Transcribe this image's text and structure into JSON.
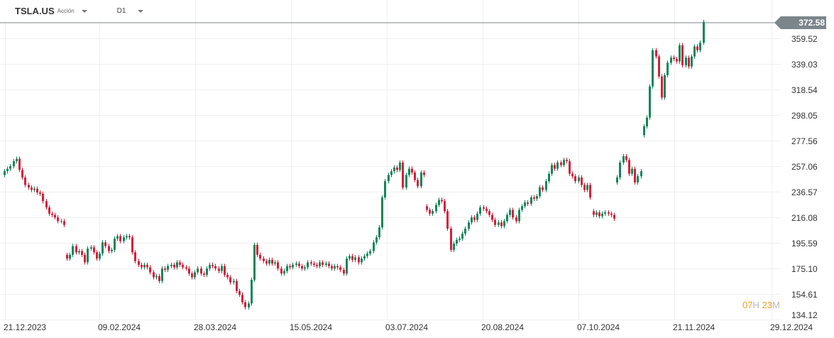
{
  "header": {
    "symbol": "TSLA.US",
    "instrument_type": "Acción",
    "timeframe": "D1"
  },
  "current_price": "372.58",
  "countdown": {
    "hours": "07",
    "hours_unit": "H",
    "minutes": "23",
    "minutes_unit": "M"
  },
  "colors": {
    "up": "#13855a",
    "down": "#d3203b",
    "grid": "#efefef",
    "price_line": "#7b868b"
  },
  "chart_data": {
    "type": "candlestick",
    "title": "TSLA.US D1",
    "y_ticks": [
      "359.52",
      "339.03",
      "318.54",
      "298.05",
      "277.56",
      "257.06",
      "236.57",
      "216.08",
      "195.59",
      "175.10",
      "154.61",
      "134.12"
    ],
    "x_ticks": [
      "21.12.2023",
      "09.02.2024",
      "28.03.2024",
      "15.05.2024",
      "03.07.2024",
      "20.08.2024",
      "07.10.2024",
      "21.11.2024",
      "29.12.2024"
    ],
    "ylim": [
      132,
      376
    ],
    "grid": true,
    "open": [
      250,
      253,
      255,
      257,
      261,
      263,
      254,
      248,
      242,
      240,
      238,
      239,
      236,
      235,
      229,
      224,
      219,
      218,
      216,
      213,
      213,
      186,
      183,
      186,
      193,
      188,
      189,
      186,
      180,
      191,
      192,
      188,
      183,
      187,
      196,
      193,
      189,
      190,
      199,
      201,
      197,
      200,
      201,
      200,
      188,
      181,
      178,
      176,
      178,
      176,
      172,
      168,
      169,
      165,
      175,
      174,
      177,
      178,
      176,
      180,
      178,
      176,
      175,
      171,
      168,
      172,
      175,
      171,
      170,
      175,
      178,
      177,
      175,
      173,
      177,
      170,
      168,
      164,
      165,
      157,
      154,
      148,
      144,
      147,
      166,
      194,
      186,
      183,
      181,
      179,
      182,
      179,
      180,
      175,
      171,
      173,
      177,
      176,
      178,
      179,
      177,
      175,
      176,
      180,
      179,
      178,
      177,
      180,
      178,
      179,
      177,
      175,
      177,
      176,
      174,
      171,
      183,
      185,
      182,
      184,
      180,
      183,
      185,
      187,
      189,
      196,
      200,
      208,
      232,
      245,
      250,
      253,
      256,
      254,
      260,
      240,
      250,
      255,
      252,
      246,
      241,
      252,
      225,
      222,
      219,
      221,
      226,
      230,
      229,
      221,
      207,
      190,
      195,
      198,
      199,
      203,
      207,
      212,
      216,
      214,
      219,
      224,
      223,
      221,
      218,
      214,
      210,
      212,
      209,
      213,
      218,
      222,
      216,
      213,
      222,
      225,
      228,
      227,
      232,
      231,
      233,
      240,
      238,
      245,
      251,
      258,
      255,
      260,
      258,
      262,
      261,
      251,
      249,
      245,
      248,
      242,
      238,
      242,
      221,
      218,
      220,
      217,
      219,
      220,
      219,
      218,
      244,
      248,
      260,
      265,
      262,
      251,
      255,
      244,
      249,
      282,
      289,
      296,
      321,
      350,
      345,
      329,
      312,
      330,
      340,
      344,
      343,
      341,
      354,
      338,
      344,
      337,
      345,
      353,
      350,
      356
    ],
    "close": [
      253,
      255,
      257,
      261,
      263,
      254,
      248,
      242,
      240,
      238,
      239,
      236,
      235,
      229,
      224,
      219,
      218,
      216,
      213,
      213,
      210,
      183,
      186,
      193,
      188,
      189,
      186,
      180,
      191,
      192,
      188,
      183,
      187,
      196,
      193,
      189,
      190,
      199,
      201,
      197,
      200,
      201,
      200,
      188,
      181,
      178,
      176,
      178,
      176,
      172,
      168,
      169,
      165,
      175,
      174,
      177,
      178,
      176,
      180,
      178,
      176,
      175,
      171,
      168,
      172,
      175,
      171,
      170,
      175,
      178,
      177,
      175,
      173,
      177,
      170,
      168,
      164,
      165,
      157,
      154,
      148,
      144,
      147,
      166,
      194,
      186,
      183,
      181,
      179,
      182,
      179,
      180,
      175,
      171,
      173,
      177,
      176,
      178,
      179,
      177,
      175,
      176,
      180,
      179,
      178,
      177,
      180,
      178,
      179,
      177,
      175,
      177,
      176,
      174,
      171,
      183,
      185,
      182,
      184,
      180,
      183,
      185,
      187,
      189,
      196,
      200,
      208,
      232,
      245,
      250,
      253,
      256,
      254,
      260,
      240,
      250,
      255,
      252,
      246,
      241,
      252,
      250,
      222,
      219,
      221,
      226,
      230,
      229,
      221,
      207,
      190,
      195,
      198,
      199,
      203,
      207,
      212,
      216,
      214,
      219,
      224,
      223,
      221,
      218,
      214,
      210,
      212,
      209,
      213,
      218,
      222,
      216,
      213,
      222,
      225,
      228,
      227,
      232,
      231,
      233,
      240,
      238,
      245,
      251,
      258,
      255,
      260,
      258,
      262,
      261,
      251,
      249,
      245,
      248,
      242,
      238,
      242,
      232,
      218,
      220,
      217,
      219,
      220,
      219,
      218,
      215,
      248,
      260,
      265,
      262,
      251,
      255,
      244,
      249,
      253,
      289,
      296,
      321,
      350,
      345,
      329,
      312,
      330,
      340,
      344,
      343,
      341,
      354,
      338,
      344,
      337,
      345,
      353,
      350,
      356,
      372.58
    ]
  }
}
